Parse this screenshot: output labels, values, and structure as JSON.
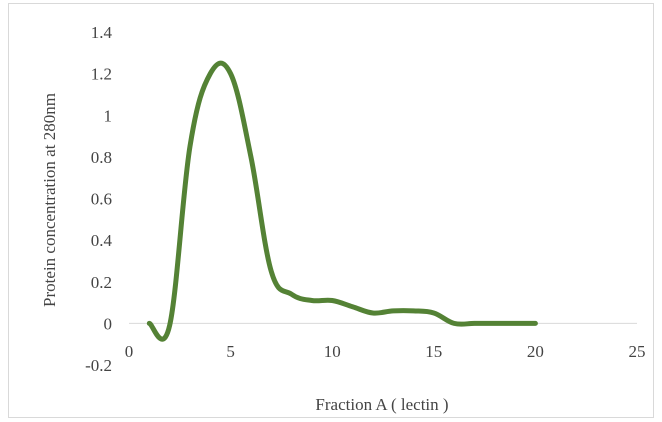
{
  "chart_data": {
    "type": "line",
    "title": "",
    "xlabel": "Fraction A ( lectin )",
    "ylabel": "Protein concentration at 280nm",
    "xlim": [
      0,
      25
    ],
    "ylim": [
      -0.2,
      1.4
    ],
    "x_ticks": [
      0,
      5,
      10,
      15,
      20,
      25
    ],
    "x_tick_labels": [
      "0",
      "5",
      "10",
      "15",
      "20",
      "25"
    ],
    "y_ticks": [
      -0.2,
      0,
      0.2,
      0.4,
      0.6,
      0.8,
      1,
      1.2,
      1.4
    ],
    "y_tick_labels": [
      "-0.2",
      "0",
      "0.2",
      "0.4",
      "0.6",
      "0.8",
      "1",
      "1.2",
      "1.4"
    ],
    "grid": false,
    "legend": "none",
    "series": [
      {
        "color": "#548235",
        "x": [
          1,
          2,
          3,
          4,
          5,
          6,
          7,
          8,
          9,
          10,
          11,
          12,
          13,
          14,
          15,
          16,
          17,
          18,
          19,
          20
        ],
        "y": [
          0,
          -0.01,
          0.85,
          1.2,
          1.2,
          0.8,
          0.25,
          0.14,
          0.11,
          0.11,
          0.08,
          0.05,
          0.06,
          0.06,
          0.05,
          0.0,
          0.0,
          0.0,
          0.0,
          0.0
        ]
      }
    ]
  }
}
